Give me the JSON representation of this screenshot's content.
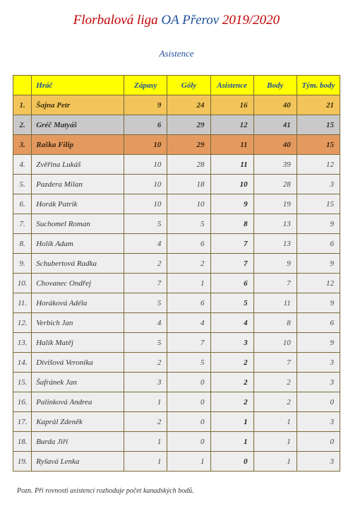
{
  "title": {
    "part1": "Florbalová liga ",
    "part2": "OA Přerov ",
    "part3": "2019/2020"
  },
  "subtitle": "Asistence",
  "columns": {
    "rank": "",
    "name": "Hráč",
    "games": "Zápasy",
    "goals": "Góly",
    "assists": "Asistence",
    "points": "Body",
    "teampoints": "Tým. body"
  },
  "rows": [
    {
      "rank": "1.",
      "name": "Šajna Petr",
      "games": 9,
      "goals": 24,
      "assists": 16,
      "points": 40,
      "teampoints": 21,
      "medal": "gold"
    },
    {
      "rank": "2.",
      "name": "Gréč Matyáš",
      "games": 6,
      "goals": 29,
      "assists": 12,
      "points": 41,
      "teampoints": 15,
      "medal": "silver"
    },
    {
      "rank": "3.",
      "name": "Raška Filip",
      "games": 10,
      "goals": 29,
      "assists": 11,
      "points": 40,
      "teampoints": 15,
      "medal": "bronze"
    },
    {
      "rank": "4.",
      "name": "Zvěřina Lukáš",
      "games": 10,
      "goals": 28,
      "assists": 11,
      "points": 39,
      "teampoints": 12,
      "medal": ""
    },
    {
      "rank": "5.",
      "name": "Pazdera Milan",
      "games": 10,
      "goals": 18,
      "assists": 10,
      "points": 28,
      "teampoints": 3,
      "medal": ""
    },
    {
      "rank": "6.",
      "name": "Horák Patrik",
      "games": 10,
      "goals": 10,
      "assists": 9,
      "points": 19,
      "teampoints": 15,
      "medal": ""
    },
    {
      "rank": "7.",
      "name": "Suchomel Roman",
      "games": 5,
      "goals": 5,
      "assists": 8,
      "points": 13,
      "teampoints": 9,
      "medal": ""
    },
    {
      "rank": "8.",
      "name": "Holík Adam",
      "games": 4,
      "goals": 6,
      "assists": 7,
      "points": 13,
      "teampoints": 6,
      "medal": ""
    },
    {
      "rank": "9.",
      "name": "Schubertová Radka",
      "games": 2,
      "goals": 2,
      "assists": 7,
      "points": 9,
      "teampoints": 9,
      "medal": ""
    },
    {
      "rank": "10.",
      "name": "Chovanec Ondřej",
      "games": 7,
      "goals": 1,
      "assists": 6,
      "points": 7,
      "teampoints": 12,
      "medal": ""
    },
    {
      "rank": "11.",
      "name": "Horáková Adéla",
      "games": 5,
      "goals": 6,
      "assists": 5,
      "points": 11,
      "teampoints": 9,
      "medal": ""
    },
    {
      "rank": "12.",
      "name": "Verbich Jan",
      "games": 4,
      "goals": 4,
      "assists": 4,
      "points": 8,
      "teampoints": 6,
      "medal": ""
    },
    {
      "rank": "13.",
      "name": "Halík Matěj",
      "games": 5,
      "goals": 7,
      "assists": 3,
      "points": 10,
      "teampoints": 9,
      "medal": ""
    },
    {
      "rank": "14.",
      "name": "Divišová Veronika",
      "games": 2,
      "goals": 5,
      "assists": 2,
      "points": 7,
      "teampoints": 3,
      "medal": ""
    },
    {
      "rank": "15.",
      "name": "Šafránek Jan",
      "games": 3,
      "goals": 0,
      "assists": 2,
      "points": 2,
      "teampoints": 3,
      "medal": ""
    },
    {
      "rank": "16.",
      "name": "Palinková Andrea",
      "games": 1,
      "goals": 0,
      "assists": 2,
      "points": 2,
      "teampoints": 0,
      "medal": ""
    },
    {
      "rank": "17.",
      "name": "Kaprál Zdeněk",
      "games": 2,
      "goals": 0,
      "assists": 1,
      "points": 1,
      "teampoints": 3,
      "medal": ""
    },
    {
      "rank": "18.",
      "name": "Burda Jiří",
      "games": 1,
      "goals": 0,
      "assists": 1,
      "points": 1,
      "teampoints": 0,
      "medal": ""
    },
    {
      "rank": "19.",
      "name": "Ryšavá Lenka",
      "games": 1,
      "goals": 1,
      "assists": 0,
      "points": 1,
      "teampoints": 3,
      "medal": ""
    }
  ],
  "footnote": "Pozn. Při rovnosti asistencí rozhoduje počet kanadských bodů."
}
